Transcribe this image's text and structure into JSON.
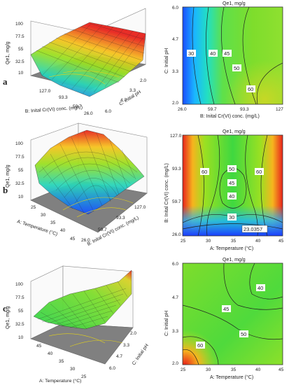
{
  "rows": [
    {
      "label": "a",
      "surface": {
        "zlabel": "Qe1, mg/g",
        "zticks": [
          "100",
          "77.5",
          "55",
          "32.5",
          "10"
        ],
        "xlabel": "B: Inital Cr(VI) conc. (mg/L)",
        "xticks": [
          "127.0",
          "93.3",
          "59.7",
          "26.0"
        ],
        "ylabel": "C: Initial pH",
        "yticks": [
          "2.0",
          "3.3",
          "4.7",
          "6.0"
        ]
      },
      "contour": {
        "title": "Qe1, mg/g",
        "xlabel": "B: Inital Cr(VI) conc. (mg/L)",
        "xticks": [
          "26.0",
          "59.7",
          "93.3",
          "127"
        ],
        "ylabel": "C: Initial pH",
        "yticks": [
          "6.0",
          "4.7",
          "3.3",
          "2.0"
        ],
        "levels": [
          "30",
          "40",
          "45",
          "50",
          "60"
        ]
      }
    },
    {
      "label": "b",
      "surface": {
        "zlabel": "Qe1, mg/g",
        "zticks": [
          "100",
          "77.5",
          "55",
          "32.5",
          "10"
        ],
        "xlabel": "A: Temperature (°C)",
        "xticks": [
          "25",
          "30",
          "35",
          "40",
          "45"
        ],
        "ylabel": "B: Inital Cr(VI) conc. (mg/L)",
        "yticks": [
          "26.0",
          "59.7",
          "93.3",
          "127.0"
        ]
      },
      "contour": {
        "title": "Qe1, mg/g",
        "xlabel": "A: Temperature (°C)",
        "xticks": [
          "25",
          "30",
          "35",
          "40",
          "45"
        ],
        "ylabel": "B: Inital Cr(VI) conc. (mg/L)",
        "yticks": [
          "127.0",
          "93.3",
          "59.7",
          "26.0"
        ],
        "levels": [
          "60",
          "50",
          "45",
          "40",
          "30",
          "60",
          "23.0357"
        ]
      }
    },
    {
      "label": "c",
      "surface": {
        "zlabel": "Qe1, mg/g",
        "zticks": [
          "100",
          "77.5",
          "55",
          "32.5",
          "10"
        ],
        "xlabel": "A: Temperature (°C)",
        "xticks": [
          "45",
          "40",
          "35",
          "30",
          "25"
        ],
        "ylabel": "C: Initial pH",
        "yticks": [
          "2.0",
          "3.3",
          "4.7",
          "6.0"
        ]
      },
      "contour": {
        "title": "Qe1, mg/g",
        "xlabel": "A: Temperature (°C)",
        "xticks": [
          "25",
          "30",
          "35",
          "40",
          "45"
        ],
        "ylabel": "C: Initial pH",
        "yticks": [
          "6.0",
          "4.7",
          "3.3",
          "2.0"
        ],
        "levels": [
          "40",
          "45",
          "50",
          "60"
        ]
      }
    }
  ],
  "colors": {
    "high": "#e8231c",
    "mid": "#9be022",
    "low": "#1a5cff",
    "contour_line": "#222222"
  },
  "chart_data": [
    {
      "type": "heatmap",
      "title": "Qe1, mg/g",
      "xlabel": "B: Inital Cr(VI) conc. (mg/L)",
      "ylabel": "C: Initial pH",
      "xlim": [
        26.0,
        127.0
      ],
      "ylim": [
        2.0,
        6.0
      ],
      "contour_levels": [
        30,
        40,
        45,
        50,
        60
      ]
    },
    {
      "type": "heatmap",
      "title": "Qe1, mg/g",
      "xlabel": "A: Temperature (°C)",
      "ylabel": "B: Inital Cr(VI) conc. (mg/L)",
      "xlim": [
        25,
        45
      ],
      "ylim": [
        26.0,
        127.0
      ],
      "contour_levels": [
        23.0357,
        30,
        40,
        45,
        50,
        60
      ]
    },
    {
      "type": "heatmap",
      "title": "Qe1, mg/g",
      "xlabel": "A: Temperature (°C)",
      "ylabel": "C: Initial pH",
      "xlim": [
        25,
        45
      ],
      "ylim": [
        2.0,
        6.0
      ],
      "contour_levels": [
        40,
        45,
        50,
        60
      ]
    }
  ]
}
